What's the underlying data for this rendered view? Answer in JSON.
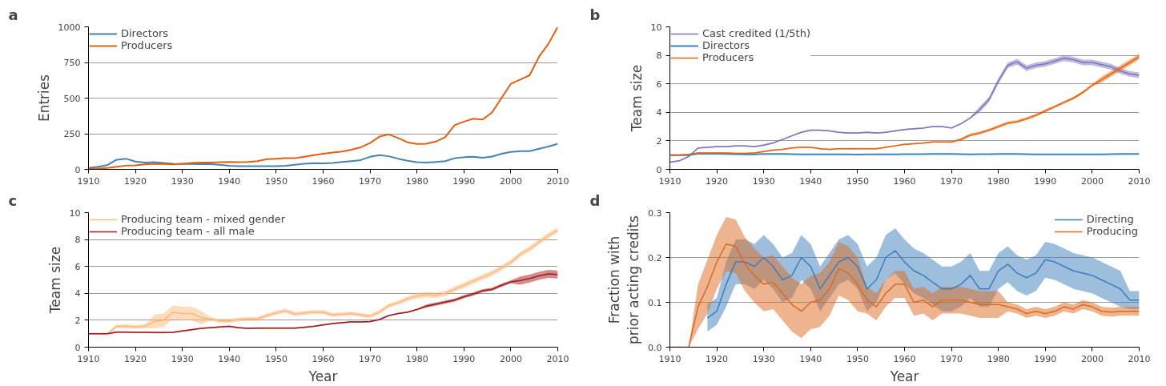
{
  "chart_data": [
    {
      "type": "line",
      "title": "a",
      "ylabel": "Entries",
      "x": [
        1910,
        1912,
        1914,
        1916,
        1918,
        1920,
        1922,
        1924,
        1926,
        1928,
        1930,
        1932,
        1934,
        1936,
        1938,
        1940,
        1942,
        1944,
        1946,
        1948,
        1950,
        1952,
        1954,
        1956,
        1958,
        1960,
        1962,
        1964,
        1966,
        1968,
        1970,
        1972,
        1974,
        1976,
        1978,
        1980,
        1982,
        1984,
        1986,
        1988,
        1990,
        1992,
        1994,
        1996,
        1998,
        2000,
        2002,
        2004,
        2006,
        2008,
        2010
      ],
      "xlim": [
        1910,
        2010
      ],
      "xticks": [
        1910,
        1920,
        1930,
        1940,
        1950,
        1960,
        1970,
        1980,
        1990,
        2000,
        2010
      ],
      "ylim": [
        0,
        1000
      ],
      "yticks": [
        0,
        250,
        500,
        750,
        1000
      ],
      "grid": "y",
      "legend": "top left",
      "series": [
        {
          "name": "Directors",
          "color": "#4682b4",
          "values": [
            10,
            18,
            30,
            68,
            75,
            55,
            48,
            50,
            45,
            40,
            38,
            38,
            36,
            36,
            32,
            25,
            22,
            22,
            22,
            22,
            22,
            25,
            32,
            40,
            43,
            42,
            45,
            52,
            58,
            65,
            88,
            100,
            92,
            75,
            60,
            50,
            48,
            52,
            58,
            78,
            85,
            88,
            82,
            90,
            110,
            122,
            128,
            128,
            145,
            160,
            180
          ]
        },
        {
          "name": "Producers",
          "color": "#e1600f",
          "values": [
            5,
            5,
            10,
            18,
            26,
            28,
            35,
            40,
            38,
            35,
            40,
            45,
            48,
            48,
            50,
            52,
            50,
            52,
            58,
            72,
            75,
            78,
            78,
            88,
            100,
            110,
            118,
            125,
            138,
            155,
            185,
            230,
            245,
            220,
            190,
            178,
            180,
            195,
            225,
            310,
            335,
            355,
            350,
            400,
            500,
            600,
            630,
            660,
            790,
            880,
            1000
          ]
        }
      ]
    },
    {
      "type": "line",
      "title": "b",
      "ylabel": "Team size",
      "x": [
        1910,
        1912,
        1914,
        1916,
        1918,
        1920,
        1922,
        1924,
        1926,
        1928,
        1930,
        1932,
        1934,
        1936,
        1938,
        1940,
        1942,
        1944,
        1946,
        1948,
        1950,
        1952,
        1954,
        1956,
        1958,
        1960,
        1962,
        1964,
        1966,
        1968,
        1970,
        1972,
        1974,
        1976,
        1978,
        1980,
        1982,
        1984,
        1986,
        1988,
        1990,
        1992,
        1994,
        1996,
        1998,
        2000,
        2002,
        2004,
        2006,
        2008,
        2010
      ],
      "xlim": [
        1910,
        2010
      ],
      "xticks": [
        1910,
        1920,
        1930,
        1940,
        1950,
        1960,
        1970,
        1980,
        1990,
        2000,
        2010
      ],
      "ylim": [
        0,
        10
      ],
      "yticks": [
        0,
        2,
        4,
        6,
        8,
        10
      ],
      "grid": "y",
      "legend": "top left",
      "series": [
        {
          "name": "Cast credited (1/5th)",
          "color": "#8273bd",
          "values": [
            0.5,
            0.6,
            0.9,
            1.5,
            1.55,
            1.6,
            1.6,
            1.65,
            1.65,
            1.6,
            1.7,
            1.85,
            2.1,
            2.35,
            2.6,
            2.75,
            2.75,
            2.7,
            2.6,
            2.55,
            2.55,
            2.6,
            2.55,
            2.6,
            2.7,
            2.8,
            2.85,
            2.9,
            3.0,
            3.0,
            2.9,
            3.2,
            3.6,
            4.2,
            4.9,
            6.2,
            7.3,
            7.55,
            7.1,
            7.3,
            7.4,
            7.6,
            7.8,
            7.7,
            7.5,
            7.5,
            7.35,
            7.2,
            6.9,
            6.7,
            6.6
          ],
          "lower": [
            0.45,
            0.55,
            0.85,
            1.45,
            1.5,
            1.55,
            1.55,
            1.6,
            1.6,
            1.55,
            1.65,
            1.8,
            2.05,
            2.3,
            2.55,
            2.7,
            2.7,
            2.65,
            2.55,
            2.5,
            2.5,
            2.55,
            2.5,
            2.55,
            2.65,
            2.75,
            2.8,
            2.85,
            2.95,
            2.95,
            2.85,
            3.15,
            3.55,
            4.0,
            4.7,
            6.0,
            7.1,
            7.35,
            6.9,
            7.1,
            7.2,
            7.4,
            7.6,
            7.5,
            7.3,
            7.3,
            7.15,
            7.0,
            6.7,
            6.5,
            6.4
          ],
          "upper": [
            0.55,
            0.65,
            0.95,
            1.55,
            1.6,
            1.65,
            1.65,
            1.7,
            1.7,
            1.65,
            1.75,
            1.9,
            2.15,
            2.4,
            2.65,
            2.8,
            2.8,
            2.75,
            2.65,
            2.6,
            2.6,
            2.65,
            2.6,
            2.65,
            2.75,
            2.85,
            2.9,
            2.95,
            3.05,
            3.05,
            2.95,
            3.25,
            3.65,
            4.4,
            5.1,
            6.4,
            7.5,
            7.75,
            7.3,
            7.5,
            7.6,
            7.8,
            8.0,
            7.9,
            7.7,
            7.7,
            7.55,
            7.4,
            7.1,
            6.9,
            6.8
          ]
        },
        {
          "name": "Directors",
          "color": "#3a84c4",
          "values": [
            1.0,
            1.0,
            1.0,
            1.1,
            1.1,
            1.1,
            1.08,
            1.07,
            1.05,
            1.05,
            1.08,
            1.08,
            1.08,
            1.07,
            1.06,
            1.05,
            1.05,
            1.05,
            1.05,
            1.05,
            1.04,
            1.05,
            1.05,
            1.05,
            1.06,
            1.07,
            1.07,
            1.07,
            1.08,
            1.08,
            1.08,
            1.07,
            1.06,
            1.07,
            1.07,
            1.08,
            1.08,
            1.08,
            1.07,
            1.06,
            1.05,
            1.05,
            1.05,
            1.05,
            1.05,
            1.05,
            1.06,
            1.07,
            1.08,
            1.08,
            1.08
          ]
        },
        {
          "name": "Producers",
          "color": "#e5650f",
          "values": [
            1.0,
            1.0,
            1.05,
            1.15,
            1.15,
            1.15,
            1.15,
            1.12,
            1.12,
            1.15,
            1.25,
            1.35,
            1.4,
            1.5,
            1.55,
            1.55,
            1.45,
            1.4,
            1.45,
            1.45,
            1.45,
            1.45,
            1.45,
            1.55,
            1.65,
            1.75,
            1.8,
            1.85,
            1.92,
            1.92,
            1.92,
            2.1,
            2.4,
            2.55,
            2.75,
            3.0,
            3.25,
            3.35,
            3.55,
            3.8,
            4.1,
            4.4,
            4.7,
            5.0,
            5.4,
            5.9,
            6.3,
            6.7,
            7.1,
            7.5,
            7.9
          ],
          "lower": [
            0.95,
            0.95,
            1.0,
            1.1,
            1.1,
            1.1,
            1.1,
            1.07,
            1.07,
            1.1,
            1.2,
            1.3,
            1.35,
            1.45,
            1.5,
            1.5,
            1.4,
            1.35,
            1.4,
            1.4,
            1.4,
            1.4,
            1.4,
            1.5,
            1.6,
            1.7,
            1.75,
            1.8,
            1.87,
            1.87,
            1.87,
            2.0,
            2.3,
            2.45,
            2.65,
            2.9,
            3.15,
            3.25,
            3.45,
            3.7,
            4.0,
            4.3,
            4.6,
            4.9,
            5.3,
            5.8,
            6.1,
            6.5,
            6.9,
            7.3,
            7.7
          ],
          "upper": [
            1.05,
            1.05,
            1.1,
            1.2,
            1.2,
            1.2,
            1.2,
            1.17,
            1.17,
            1.2,
            1.3,
            1.4,
            1.45,
            1.55,
            1.6,
            1.6,
            1.5,
            1.45,
            1.5,
            1.5,
            1.5,
            1.5,
            1.5,
            1.6,
            1.7,
            1.8,
            1.85,
            1.9,
            1.97,
            1.97,
            1.97,
            2.2,
            2.5,
            2.65,
            2.85,
            3.1,
            3.35,
            3.45,
            3.65,
            3.9,
            4.2,
            4.5,
            4.8,
            5.1,
            5.5,
            6.0,
            6.5,
            6.9,
            7.3,
            7.7,
            8.1
          ]
        }
      ]
    },
    {
      "type": "line",
      "title": "c",
      "ylabel": "Team size",
      "xlabel": "Year",
      "x": [
        1910,
        1912,
        1914,
        1916,
        1918,
        1920,
        1922,
        1924,
        1926,
        1928,
        1930,
        1932,
        1934,
        1936,
        1938,
        1940,
        1942,
        1944,
        1946,
        1948,
        1950,
        1952,
        1954,
        1956,
        1958,
        1960,
        1962,
        1964,
        1966,
        1968,
        1970,
        1972,
        1974,
        1976,
        1978,
        1980,
        1982,
        1984,
        1986,
        1988,
        1990,
        1992,
        1994,
        1996,
        1998,
        2000,
        2002,
        2004,
        2006,
        2008,
        2010
      ],
      "xlim": [
        1910,
        2010
      ],
      "xticks": [
        1910,
        1920,
        1930,
        1940,
        1950,
        1960,
        1970,
        1980,
        1990,
        2000,
        2010
      ],
      "ylim": [
        0,
        10
      ],
      "yticks": [
        0,
        2,
        4,
        6,
        8,
        10
      ],
      "grid": "y",
      "legend": "top left",
      "series": [
        {
          "name": "Producing team - mixed gender",
          "color": "#fdb97d",
          "values": [
            null,
            null,
            1.0,
            1.55,
            1.55,
            1.5,
            1.55,
            1.9,
            2.0,
            2.6,
            2.5,
            2.5,
            2.2,
            2.1,
            1.95,
            1.95,
            2.05,
            2.1,
            2.1,
            2.35,
            2.55,
            2.7,
            2.45,
            2.55,
            2.6,
            2.6,
            2.4,
            2.45,
            2.5,
            2.4,
            2.3,
            2.6,
            3.1,
            3.3,
            3.6,
            3.8,
            3.9,
            3.85,
            4.0,
            4.3,
            4.6,
            4.9,
            5.2,
            5.5,
            5.9,
            6.3,
            6.9,
            7.3,
            7.8,
            8.3,
            8.7
          ],
          "lower": [
            null,
            null,
            1.0,
            1.4,
            1.4,
            1.35,
            1.4,
            1.4,
            1.5,
            2.1,
            2.0,
            2.0,
            1.7,
            1.95,
            1.8,
            1.8,
            1.9,
            1.95,
            1.95,
            2.2,
            2.4,
            2.55,
            2.3,
            2.4,
            2.45,
            2.45,
            2.25,
            2.3,
            2.35,
            2.25,
            2.15,
            2.45,
            2.95,
            3.15,
            3.4,
            3.6,
            3.7,
            3.65,
            3.8,
            4.1,
            4.4,
            4.7,
            5.0,
            5.3,
            5.7,
            6.1,
            6.7,
            7.1,
            7.6,
            8.1,
            8.5
          ],
          "upper": [
            null,
            null,
            1.0,
            1.7,
            1.7,
            1.65,
            1.7,
            2.4,
            2.5,
            3.1,
            3.0,
            3.0,
            2.7,
            2.25,
            2.1,
            2.1,
            2.2,
            2.25,
            2.25,
            2.5,
            2.7,
            2.85,
            2.6,
            2.7,
            2.75,
            2.75,
            2.55,
            2.6,
            2.65,
            2.55,
            2.45,
            2.75,
            3.25,
            3.45,
            3.8,
            4.0,
            4.1,
            4.05,
            4.2,
            4.5,
            4.8,
            5.1,
            5.4,
            5.7,
            6.1,
            6.5,
            7.1,
            7.5,
            8.0,
            8.5,
            8.9
          ]
        },
        {
          "name": "Producing team - all male",
          "color": "#a31a1c",
          "values": [
            1.0,
            1.0,
            1.0,
            1.12,
            1.12,
            1.1,
            1.1,
            1.08,
            1.08,
            1.1,
            1.2,
            1.3,
            1.4,
            1.45,
            1.5,
            1.55,
            1.45,
            1.4,
            1.42,
            1.42,
            1.42,
            1.42,
            1.42,
            1.48,
            1.55,
            1.65,
            1.75,
            1.82,
            1.88,
            1.88,
            1.9,
            2.05,
            2.35,
            2.5,
            2.6,
            2.8,
            3.05,
            3.2,
            3.35,
            3.5,
            3.75,
            3.95,
            4.2,
            4.3,
            4.6,
            4.85,
            4.95,
            5.1,
            5.3,
            5.45,
            5.4
          ],
          "lower": [
            0.95,
            0.95,
            0.95,
            1.07,
            1.07,
            1.05,
            1.05,
            1.03,
            1.03,
            1.05,
            1.15,
            1.25,
            1.35,
            1.4,
            1.45,
            1.5,
            1.4,
            1.35,
            1.37,
            1.37,
            1.37,
            1.37,
            1.37,
            1.43,
            1.5,
            1.6,
            1.7,
            1.77,
            1.83,
            1.83,
            1.85,
            2.0,
            2.3,
            2.45,
            2.55,
            2.75,
            2.93,
            3.08,
            3.23,
            3.38,
            3.63,
            3.83,
            4.08,
            4.18,
            4.48,
            4.73,
            4.65,
            4.8,
            5.0,
            5.15,
            5.1
          ],
          "upper": [
            1.05,
            1.05,
            1.05,
            1.17,
            1.17,
            1.15,
            1.15,
            1.13,
            1.13,
            1.15,
            1.25,
            1.35,
            1.45,
            1.5,
            1.55,
            1.6,
            1.5,
            1.45,
            1.47,
            1.47,
            1.47,
            1.47,
            1.47,
            1.53,
            1.6,
            1.7,
            1.8,
            1.87,
            1.93,
            1.93,
            1.95,
            2.1,
            2.4,
            2.55,
            2.65,
            2.85,
            3.17,
            3.32,
            3.47,
            3.62,
            3.87,
            4.07,
            4.32,
            4.42,
            4.72,
            4.97,
            5.25,
            5.4,
            5.6,
            5.75,
            5.7
          ]
        }
      ]
    },
    {
      "type": "line",
      "title": "d",
      "ylabel": "Fraction with\nprior acting credits",
      "xlabel": "Year",
      "x": [
        1910,
        1912,
        1914,
        1916,
        1918,
        1920,
        1922,
        1924,
        1926,
        1928,
        1930,
        1932,
        1934,
        1936,
        1938,
        1940,
        1942,
        1944,
        1946,
        1948,
        1950,
        1952,
        1954,
        1956,
        1958,
        1960,
        1962,
        1964,
        1966,
        1968,
        1970,
        1972,
        1974,
        1976,
        1978,
        1980,
        1982,
        1984,
        1986,
        1988,
        1990,
        1992,
        1994,
        1996,
        1998,
        2000,
        2002,
        2004,
        2006,
        2008,
        2010
      ],
      "xlim": [
        1910,
        2010
      ],
      "xticks": [
        1910,
        1920,
        1930,
        1940,
        1950,
        1960,
        1970,
        1980,
        1990,
        2000,
        2010
      ],
      "ylim": [
        0,
        0.3
      ],
      "yticks": [
        {
          "value": 0,
          "label": "0.0"
        },
        0.1,
        0.2,
        0.3
      ],
      "grid": "y",
      "legend": "top right",
      "series": [
        {
          "name": "Directing",
          "color": "#3c7dbc",
          "values": [
            null,
            null,
            null,
            null,
            0.065,
            0.08,
            0.14,
            0.19,
            0.19,
            0.18,
            0.2,
            0.18,
            0.15,
            0.16,
            0.2,
            0.18,
            0.13,
            0.16,
            0.19,
            0.2,
            0.18,
            0.13,
            0.15,
            0.2,
            0.215,
            0.19,
            0.17,
            0.16,
            0.145,
            0.13,
            0.13,
            0.14,
            0.16,
            0.13,
            0.13,
            0.17,
            0.185,
            0.165,
            0.155,
            0.165,
            0.195,
            0.19,
            0.18,
            0.17,
            0.165,
            0.16,
            0.15,
            0.14,
            0.13,
            0.105,
            0.105
          ],
          "lower": [
            null,
            null,
            null,
            null,
            0.035,
            0.05,
            0.09,
            0.14,
            0.14,
            0.13,
            0.15,
            0.13,
            0.1,
            0.11,
            0.15,
            0.13,
            0.08,
            0.11,
            0.14,
            0.15,
            0.13,
            0.08,
            0.1,
            0.15,
            0.165,
            0.14,
            0.12,
            0.11,
            0.095,
            0.08,
            0.08,
            0.09,
            0.11,
            0.09,
            0.09,
            0.13,
            0.145,
            0.125,
            0.115,
            0.125,
            0.155,
            0.15,
            0.14,
            0.13,
            0.125,
            0.12,
            0.11,
            0.1,
            0.09,
            0.085,
            0.085
          ],
          "upper": [
            null,
            null,
            null,
            null,
            0.095,
            0.11,
            0.19,
            0.24,
            0.24,
            0.23,
            0.25,
            0.23,
            0.2,
            0.21,
            0.25,
            0.23,
            0.18,
            0.21,
            0.24,
            0.25,
            0.23,
            0.18,
            0.2,
            0.25,
            0.265,
            0.24,
            0.22,
            0.21,
            0.195,
            0.18,
            0.18,
            0.19,
            0.21,
            0.17,
            0.17,
            0.21,
            0.225,
            0.205,
            0.195,
            0.205,
            0.235,
            0.23,
            0.22,
            0.21,
            0.205,
            0.2,
            0.19,
            0.18,
            0.17,
            0.125,
            0.125
          ]
        },
        {
          "name": "Producing",
          "color": "#dd6a1f",
          "values": [
            0,
            0,
            0,
            0.09,
            0.135,
            0.19,
            0.23,
            0.225,
            0.185,
            0.16,
            0.14,
            0.145,
            0.12,
            0.095,
            0.08,
            0.1,
            0.105,
            0.13,
            0.175,
            0.165,
            0.14,
            0.105,
            0.09,
            0.12,
            0.14,
            0.14,
            0.1,
            0.105,
            0.09,
            0.105,
            0.105,
            0.105,
            0.1,
            0.095,
            0.095,
            0.095,
            0.09,
            0.085,
            0.075,
            0.08,
            0.075,
            0.08,
            0.09,
            0.085,
            0.095,
            0.09,
            0.08,
            0.078,
            0.08,
            0.08,
            0.08
          ],
          "lower": [
            0,
            0,
            0,
            0.04,
            0.075,
            0.13,
            0.17,
            0.165,
            0.125,
            0.1,
            0.08,
            0.085,
            0.06,
            0.035,
            0.02,
            0.04,
            0.045,
            0.07,
            0.115,
            0.105,
            0.08,
            0.075,
            0.06,
            0.09,
            0.11,
            0.11,
            0.07,
            0.075,
            0.06,
            0.075,
            0.075,
            0.075,
            0.07,
            0.065,
            0.065,
            0.065,
            0.08,
            0.075,
            0.065,
            0.07,
            0.065,
            0.07,
            0.08,
            0.075,
            0.085,
            0.08,
            0.07,
            0.068,
            0.07,
            0.07,
            0.07
          ],
          "upper": [
            0,
            0,
            0,
            0.14,
            0.195,
            0.25,
            0.29,
            0.285,
            0.245,
            0.22,
            0.2,
            0.205,
            0.18,
            0.155,
            0.14,
            0.16,
            0.165,
            0.19,
            0.235,
            0.225,
            0.2,
            0.135,
            0.12,
            0.15,
            0.17,
            0.17,
            0.13,
            0.135,
            0.12,
            0.135,
            0.135,
            0.135,
            0.13,
            0.125,
            0.125,
            0.125,
            0.1,
            0.095,
            0.085,
            0.09,
            0.085,
            0.09,
            0.1,
            0.095,
            0.105,
            0.1,
            0.09,
            0.088,
            0.09,
            0.09,
            0.09
          ]
        }
      ]
    }
  ]
}
